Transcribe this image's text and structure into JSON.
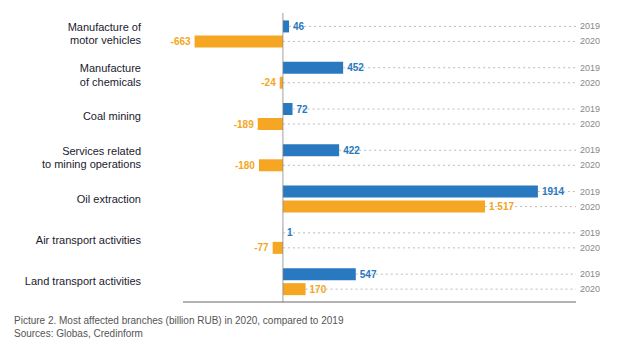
{
  "chart_data": {
    "type": "bar",
    "orientation": "horizontal",
    "categories": [
      "Manufacture of\nmotor vehicles",
      "Manufacture\nof chemicals",
      "Coal mining",
      "Services related\nto mining operations",
      "Oil extraction",
      "Air transport activities",
      "Land transport activities"
    ],
    "series": [
      {
        "name": "2019",
        "color": "#2979c0",
        "values": [
          46,
          452,
          72,
          422,
          1914,
          1,
          547
        ]
      },
      {
        "name": "2020",
        "color": "#f5a623",
        "values": [
          -663,
          -24,
          -189,
          -180,
          1517,
          -77,
          170
        ],
        "value_labels": [
          "-663",
          "-24",
          "-189",
          "-180",
          "1 517",
          "-77",
          "170"
        ]
      }
    ],
    "xlim": [
      -750,
      2200
    ],
    "data_labels": true,
    "tick_labels": "y",
    "grid": false,
    "annotations": [
      "Picture 2. Most affected branches (billion RUB) in 2020, compared to 2019",
      "Sources: Globas, Credinform"
    ]
  }
}
